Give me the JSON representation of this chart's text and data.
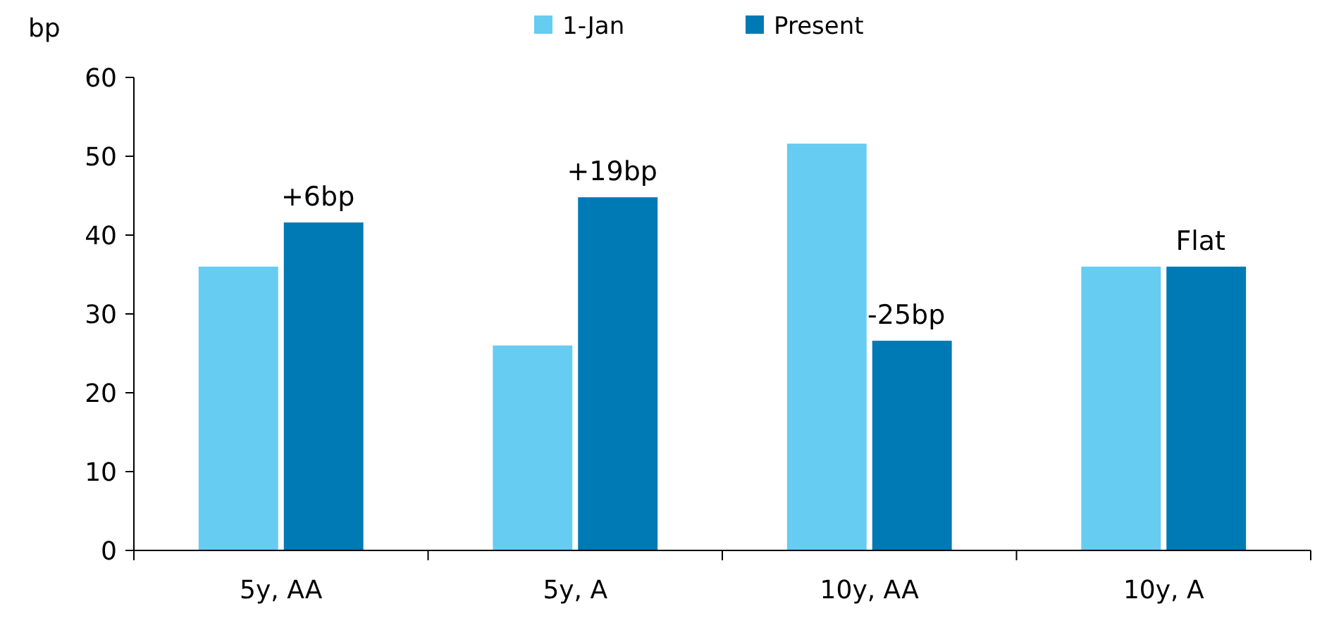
{
  "chart_data": {
    "type": "bar",
    "ylabel": "bp",
    "categories": [
      "5y, AA",
      "5y, A",
      "10y, AA",
      "10y, A"
    ],
    "series": [
      {
        "name": "1-Jan",
        "color": "#66ccf2",
        "values": [
          36,
          26,
          51.6,
          36
        ]
      },
      {
        "name": "Present",
        "color": "#007ab5",
        "values": [
          41.6,
          44.8,
          26.6,
          36
        ]
      }
    ],
    "ylim": [
      0,
      60
    ],
    "yticks": [
      0,
      10,
      20,
      30,
      40,
      50,
      60
    ],
    "grid": false,
    "legend": "top",
    "annotations": [
      {
        "text": "+6bp",
        "x": "5y, AA",
        "y": 41.6
      },
      {
        "text": "+19bp",
        "x": "5y, A",
        "y": 44.8
      },
      {
        "text": "-25bp",
        "x": "10y, AA",
        "y": 26.6
      },
      {
        "text": "Flat",
        "x": "10y, A",
        "y": 36
      }
    ]
  }
}
